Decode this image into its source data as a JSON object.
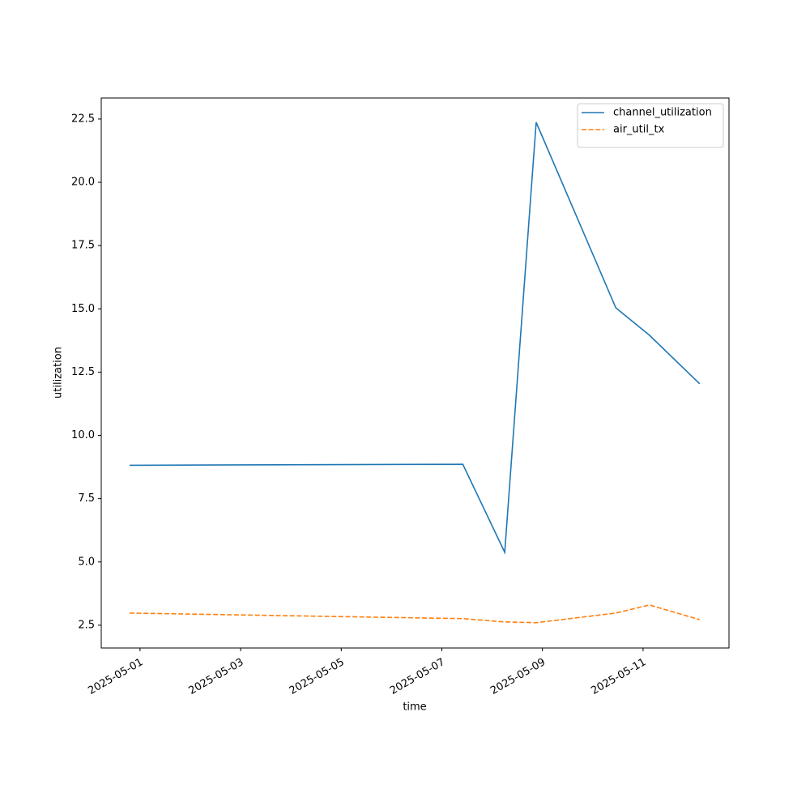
{
  "chart_data": {
    "type": "line",
    "x_label": "time",
    "y_label": "utilization",
    "x": [
      "2025-04-30T19:00",
      "2025-05-07T10:00",
      "2025-05-08T06:00",
      "2025-05-08T21:00",
      "2025-05-10T11:00",
      "2025-05-11T03:00",
      "2025-05-12T03:00"
    ],
    "series": [
      {
        "name": "channel_utilization",
        "color": "#1f77b4",
        "dash": "solid",
        "values": [
          8.82,
          8.86,
          5.38,
          22.37,
          15.04,
          13.96,
          12.04
        ]
      },
      {
        "name": "air_util_tx",
        "color": "#ff7f0e",
        "dash": "dashed",
        "values": [
          2.98,
          2.76,
          2.63,
          2.6,
          2.98,
          3.3,
          2.72
        ]
      }
    ],
    "xlim": [
      "2025-04-30T05:30",
      "2025-05-12T17:00"
    ],
    "xticks": [
      "2025-05-01",
      "2025-05-03",
      "2025-05-05",
      "2025-05-07",
      "2025-05-09",
      "2025-05-11"
    ],
    "ylim": [
      1.6,
      23.33
    ],
    "yticks": [
      2.5,
      {
        "value": 5,
        "label": "5.0"
      },
      7.5,
      {
        "value": 10,
        "label": "10.0"
      },
      12.5,
      {
        "value": 15,
        "label": "15.0"
      },
      17.5,
      {
        "value": 20,
        "label": "20.0"
      },
      22.5
    ],
    "grid": false,
    "legend": "upper right"
  }
}
